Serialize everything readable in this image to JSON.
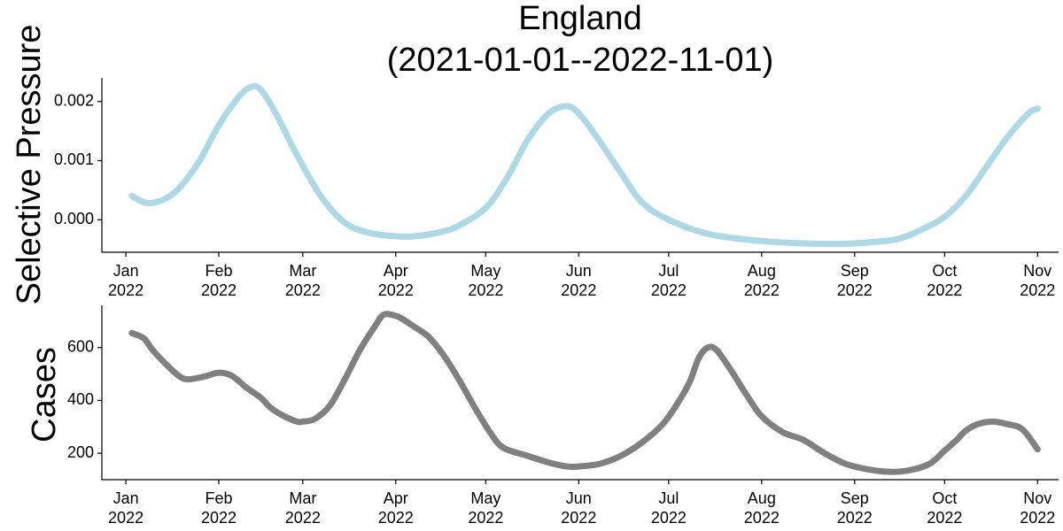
{
  "title": {
    "line1": "England",
    "line2": "(2021-01-01--2022-11-01)"
  },
  "colors": {
    "selective_pressure": "#add8e6",
    "cases": "#808080"
  },
  "chart_data": [
    {
      "type": "line",
      "ylabel": "Selective Pressure",
      "x_axis": "date",
      "xlim": [
        "2021-12-24",
        "2022-11-08"
      ],
      "ylim": [
        -0.00055,
        0.0024
      ],
      "yticks": [
        0.0,
        0.001,
        0.002
      ],
      "ytick_labels": [
        "0.000",
        "0.001",
        "0.002"
      ],
      "xticks": [
        "2022-01-01",
        "2022-02-01",
        "2022-03-01",
        "2022-04-01",
        "2022-05-01",
        "2022-06-01",
        "2022-07-01",
        "2022-08-01",
        "2022-09-01",
        "2022-10-01",
        "2022-11-01"
      ],
      "xtick_labels": [
        [
          "Jan",
          "2022"
        ],
        [
          "Feb",
          "2022"
        ],
        [
          "Mar",
          "2022"
        ],
        [
          "Apr",
          "2022"
        ],
        [
          "May",
          "2022"
        ],
        [
          "Jun",
          "2022"
        ],
        [
          "Jul",
          "2022"
        ],
        [
          "Aug",
          "2022"
        ],
        [
          "Sep",
          "2022"
        ],
        [
          "Oct",
          "2022"
        ],
        [
          "Nov",
          "2022"
        ]
      ],
      "grid": false,
      "series": [
        {
          "x": [
            "2022-01-03",
            "2022-01-09",
            "2022-01-17",
            "2022-01-25",
            "2022-02-01",
            "2022-02-08",
            "2022-02-12",
            "2022-02-15",
            "2022-02-20",
            "2022-02-27",
            "2022-03-07",
            "2022-03-15",
            "2022-03-23",
            "2022-04-01",
            "2022-04-07",
            "2022-04-15",
            "2022-04-22",
            "2022-05-01",
            "2022-05-08",
            "2022-05-15",
            "2022-05-22",
            "2022-05-28",
            "2022-06-01",
            "2022-06-07",
            "2022-06-15",
            "2022-06-22",
            "2022-07-01",
            "2022-07-15",
            "2022-08-01",
            "2022-08-15",
            "2022-08-24",
            "2022-09-01",
            "2022-09-15",
            "2022-09-24",
            "2022-10-01",
            "2022-10-08",
            "2022-10-15",
            "2022-10-22",
            "2022-10-29",
            "2022-11-01"
          ],
          "values": [
            0.0004,
            0.00028,
            0.00045,
            0.00095,
            0.0016,
            0.0021,
            0.00225,
            0.0022,
            0.0018,
            0.0011,
            0.0004,
            -5e-05,
            -0.00022,
            -0.00028,
            -0.00028,
            -0.00022,
            -0.0001,
            0.0002,
            0.0007,
            0.00135,
            0.0018,
            0.00192,
            0.0018,
            0.0014,
            0.0008,
            0.0003,
            0.0,
            -0.00025,
            -0.00036,
            -0.0004,
            -0.00041,
            -0.0004,
            -0.00033,
            -0.00015,
            5e-05,
            0.0004,
            0.0009,
            0.0014,
            0.0018,
            0.00188
          ]
        }
      ]
    },
    {
      "type": "line",
      "ylabel": "Cases",
      "x_axis": "date",
      "xlim": [
        "2021-12-24",
        "2022-11-08"
      ],
      "ylim": [
        100,
        760
      ],
      "yticks": [
        200,
        400,
        600
      ],
      "ytick_labels": [
        "200",
        "400",
        "600"
      ],
      "xticks": [
        "2022-01-01",
        "2022-02-01",
        "2022-03-01",
        "2022-04-01",
        "2022-05-01",
        "2022-06-01",
        "2022-07-01",
        "2022-08-01",
        "2022-09-01",
        "2022-10-01",
        "2022-11-01"
      ],
      "xtick_labels": [
        [
          "Jan",
          "2022"
        ],
        [
          "Feb",
          "2022"
        ],
        [
          "Mar",
          "2022"
        ],
        [
          "Apr",
          "2022"
        ],
        [
          "May",
          "2022"
        ],
        [
          "Jun",
          "2022"
        ],
        [
          "Jul",
          "2022"
        ],
        [
          "Aug",
          "2022"
        ],
        [
          "Sep",
          "2022"
        ],
        [
          "Oct",
          "2022"
        ],
        [
          "Nov",
          "2022"
        ]
      ],
      "grid": false,
      "series": [
        {
          "x": [
            "2022-01-03",
            "2022-01-07",
            "2022-01-10",
            "2022-01-15",
            "2022-01-19",
            "2022-01-22",
            "2022-01-27",
            "2022-02-01",
            "2022-02-05",
            "2022-02-08",
            "2022-02-10",
            "2022-02-15",
            "2022-02-18",
            "2022-02-22",
            "2022-02-27",
            "2022-03-01",
            "2022-03-05",
            "2022-03-10",
            "2022-03-15",
            "2022-03-20",
            "2022-03-25",
            "2022-03-28",
            "2022-04-01",
            "2022-04-03",
            "2022-04-07",
            "2022-04-12",
            "2022-04-17",
            "2022-04-22",
            "2022-04-28",
            "2022-05-03",
            "2022-05-07",
            "2022-05-15",
            "2022-05-22",
            "2022-05-28",
            "2022-06-01",
            "2022-06-08",
            "2022-06-15",
            "2022-06-22",
            "2022-06-29",
            "2022-07-04",
            "2022-07-08",
            "2022-07-11",
            "2022-07-14",
            "2022-07-17",
            "2022-07-22",
            "2022-07-27",
            "2022-08-01",
            "2022-08-08",
            "2022-08-15",
            "2022-08-22",
            "2022-08-29",
            "2022-09-05",
            "2022-09-12",
            "2022-09-19",
            "2022-09-26",
            "2022-10-01",
            "2022-10-05",
            "2022-10-08",
            "2022-10-12",
            "2022-10-17",
            "2022-10-22",
            "2022-10-27",
            "2022-11-01"
          ],
          "values": [
            655,
            635,
            590,
            530,
            490,
            480,
            490,
            505,
            495,
            470,
            450,
            410,
            375,
            345,
            320,
            320,
            330,
            380,
            480,
            590,
            680,
            725,
            720,
            710,
            680,
            640,
            570,
            480,
            360,
            270,
            220,
            190,
            165,
            150,
            150,
            160,
            190,
            240,
            310,
            390,
            470,
            560,
            600,
            590,
            510,
            420,
            340,
            280,
            250,
            200,
            160,
            140,
            130,
            135,
            160,
            210,
            250,
            285,
            310,
            320,
            310,
            290,
            215
          ]
        }
      ]
    }
  ]
}
